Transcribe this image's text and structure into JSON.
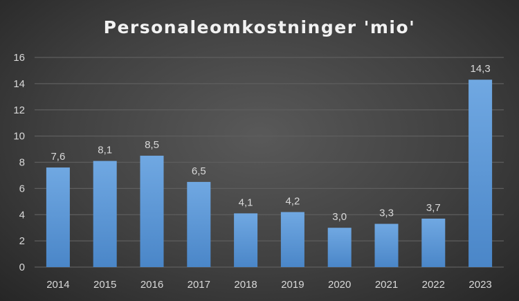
{
  "chart_data": {
    "type": "bar",
    "title": "Personaleomkostninger 'mio'",
    "xlabel": "",
    "ylabel": "",
    "categories": [
      "2014",
      "2015",
      "2016",
      "2017",
      "2018",
      "2019",
      "2020",
      "2021",
      "2022",
      "2023"
    ],
    "values": [
      7.6,
      8.1,
      8.5,
      6.5,
      4.1,
      4.2,
      3.0,
      3.3,
      3.7,
      14.3
    ],
    "data_labels": [
      "7,6",
      "8,1",
      "8,5",
      "6,5",
      "4,1",
      "4,2",
      "3,0",
      "3,3",
      "3,7",
      "14,3"
    ],
    "ylim": [
      0,
      16
    ],
    "yticks": [
      "0",
      "2",
      "4",
      "6",
      "8",
      "10",
      "12",
      "14",
      "16"
    ],
    "grid": true,
    "legend": "none",
    "colors": {
      "bar_top": "#70a8e2",
      "bar_bottom": "#4a86c8",
      "grid": "#5e5e5e"
    }
  }
}
